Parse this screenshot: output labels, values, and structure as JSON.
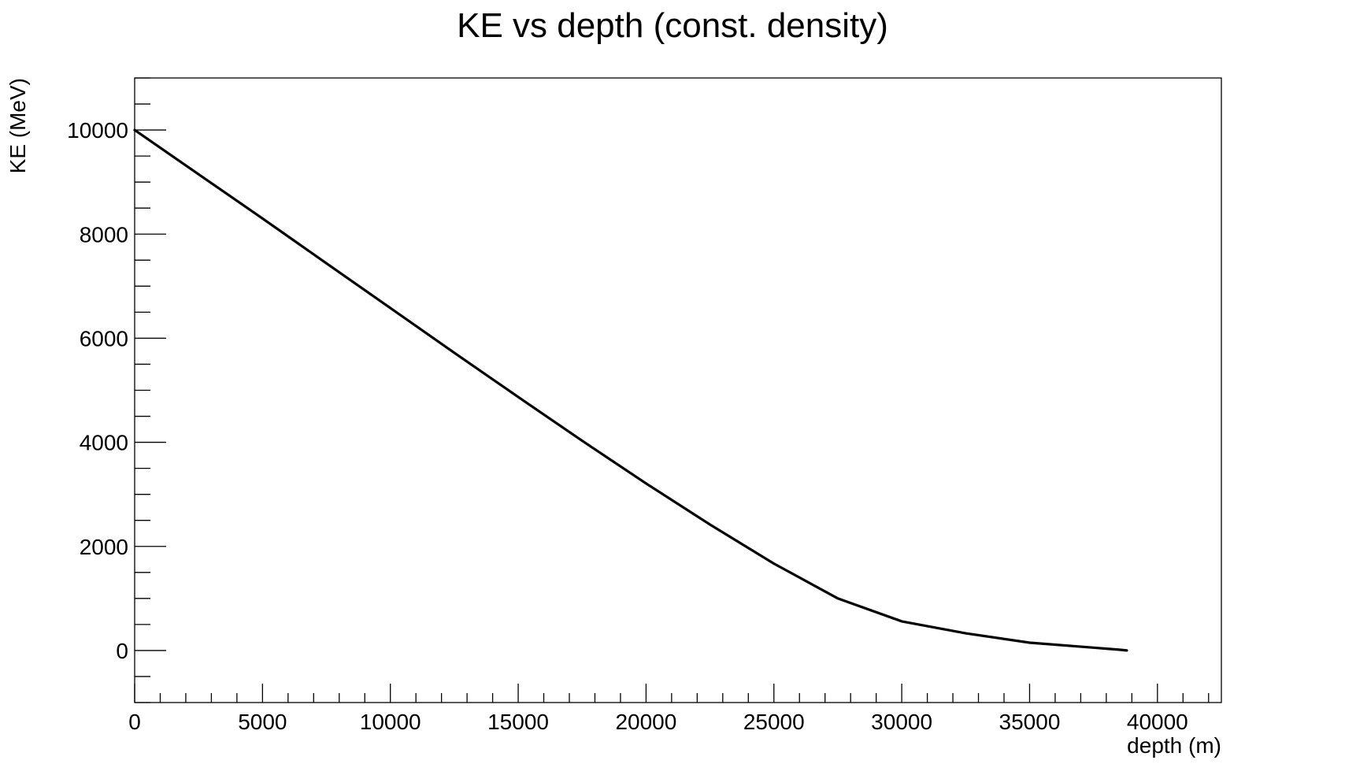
{
  "chart_data": {
    "type": "line",
    "title": "KE vs depth (const. density)",
    "xlabel": "depth (m)",
    "ylabel": "KE (MeV)",
    "xlim": [
      0,
      42500
    ],
    "ylim": [
      -1000,
      11000
    ],
    "x_ticks": [
      0,
      5000,
      10000,
      15000,
      20000,
      25000,
      30000,
      35000,
      40000
    ],
    "y_ticks": [
      0,
      2000,
      4000,
      6000,
      8000,
      10000
    ],
    "x_tick_labels": [
      "0",
      "5000",
      "10000",
      "15000",
      "20000",
      "25000",
      "30000",
      "35000",
      "40000"
    ],
    "y_tick_labels": [
      "0",
      "2000",
      "4000",
      "6000",
      "8000",
      "10000"
    ],
    "grid": false,
    "legend": "none",
    "series": [
      {
        "color": "#000000",
        "x": [
          0,
          2500,
          5000,
          7500,
          10000,
          12500,
          15000,
          17500,
          20000,
          22500,
          25000,
          27500,
          30000,
          32500,
          35000,
          37500,
          38500,
          38800
        ],
        "y": [
          10000,
          9100,
          8200,
          7300,
          6400,
          5510,
          4620,
          3730,
          2850,
          1990,
          1190,
          2055,
          0,
          0,
          0,
          0,
          0,
          0
        ]
      }
    ]
  }
}
